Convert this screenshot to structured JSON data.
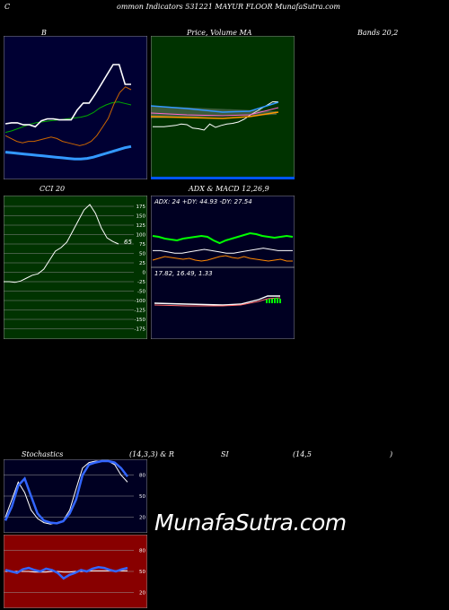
{
  "header": {
    "left_letter": "C",
    "title": "ommon  Indicators 531221 MAYUR FLOOR  MunafaSutra.com"
  },
  "labels": {
    "b_title": "B",
    "price_title": "Price,  Volume  MA",
    "bands_title": "Bands 20,2",
    "cci_title": "CCI 20",
    "adx_title": "ADX  & MACD 12,26,9",
    "adx_info": "ADX: 24  +DY: 44.93 -DY: 27.54",
    "macd_info": "17.82,  16.49,  1.33",
    "stoch_title_a": "Stochastics",
    "stoch_title_b": "(14,3,3) & R",
    "stoch_title_c": "SI",
    "stoch_title_d": "(14,5",
    "stoch_title_e": ")",
    "watermark": "MunafaSutra.com"
  },
  "colors": {
    "bands_bg": "#000033",
    "price_bg": "#003300",
    "cci_bg": "#003300",
    "adx_bg": "#000022",
    "stoch_bg": "#000022",
    "rsi_bg": "#880000",
    "adx_line": "#00ff00",
    "adx_down": "#ff8800",
    "macd_line": "#ffffff",
    "macd_hist": "#00ff00",
    "bollinger_mid": "#3399ff",
    "bollinger_up": "#00aa00",
    "bollinger_low": "#cc6600"
  },
  "chart_data": [
    {
      "type": "line",
      "name_ref": "bollinger",
      "series": [
        {
          "values": [
            118,
            116,
            114,
            113,
            114,
            114,
            115,
            116,
            117,
            116,
            114,
            113,
            112,
            111,
            112,
            114,
            118,
            124,
            130,
            140,
            148,
            152,
            150
          ]
        },
        {
          "values": [
            132,
            131,
            130,
            129,
            128,
            127,
            126,
            125,
            124,
            123,
            122,
            121,
            121,
            122,
            124,
            127,
            130,
            133,
            136,
            139,
            141
          ]
        },
        {
          "values": [
            144,
            146,
            149,
            152,
            155,
            157,
            158,
            159,
            160,
            161,
            162,
            163,
            164,
            166,
            170,
            176,
            180,
            183,
            184,
            182,
            180
          ]
        },
        {
          "values": [
            120,
            121,
            121,
            119,
            119,
            117,
            123,
            125,
            125,
            124,
            124,
            124,
            134,
            141,
            141,
            150,
            160,
            170,
            180,
            180,
            160,
            160
          ]
        }
      ]
    },
    {
      "type": "line",
      "name_ref": "price_ma",
      "series": [
        {
          "values": [
            135,
            135,
            135,
            134,
            133,
            131,
            132,
            137,
            138,
            140,
            131,
            136,
            133,
            131,
            130,
            128,
            124,
            118,
            113,
            108,
            103,
            98,
            98
          ]
        }
      ]
    },
    {
      "type": "line",
      "name_ref": "cci",
      "ticks": [
        "175",
        "150",
        "125",
        "100",
        "75",
        "50",
        "25",
        "0",
        "-25",
        "-50",
        "-100",
        "-125",
        "-150",
        "-175"
      ],
      "value_label": "65",
      "series": [
        {
          "values": [
            -40,
            -40,
            -42,
            -38,
            -30,
            -22,
            -18,
            -5,
            20,
            45,
            55,
            70,
            100,
            130,
            160,
            175,
            150,
            110,
            82,
            72,
            65
          ]
        }
      ]
    },
    {
      "type": "line",
      "name_ref": "adx_macd",
      "series": [
        {
          "values": [
            45,
            44,
            42,
            41,
            40,
            42,
            43,
            44,
            45,
            44,
            40,
            37,
            40,
            42,
            44,
            46,
            48,
            47,
            45,
            44,
            43,
            44,
            45,
            44
          ]
        },
        {
          "values": [
            28,
            30,
            32,
            31,
            30,
            29,
            30,
            28,
            27,
            28,
            30,
            32,
            33,
            31,
            30,
            32,
            30,
            29,
            28,
            27,
            28,
            29,
            27,
            27
          ]
        },
        {
          "values": [
            24,
            24,
            23,
            22,
            22,
            23,
            24,
            25,
            24,
            23,
            22,
            22,
            23,
            24,
            25,
            26,
            25,
            24,
            24,
            24
          ]
        }
      ]
    },
    {
      "type": "line",
      "name_ref": "stochastics",
      "ticks": [
        "80",
        "50",
        "20"
      ],
      "series": [
        {
          "values": [
            20,
            45,
            70,
            55,
            30,
            18,
            12,
            10,
            12,
            15,
            30,
            60,
            90,
            98,
            100,
            100,
            100,
            95,
            80,
            70
          ]
        },
        {
          "values": [
            15,
            35,
            65,
            75,
            50,
            25,
            15,
            12,
            11,
            14,
            25,
            45,
            80,
            95,
            98,
            100,
            100,
            98,
            90,
            78
          ]
        }
      ]
    },
    {
      "type": "line",
      "name_ref": "rsi",
      "ticks": [
        "80",
        "50",
        "20"
      ],
      "series": [
        {
          "values": [
            52,
            50,
            48,
            53,
            55,
            52,
            50,
            54,
            52,
            48,
            40,
            45,
            48,
            52,
            50,
            54,
            56,
            55,
            52,
            50,
            53,
            55
          ]
        },
        {
          "values": [
            50,
            50,
            50,
            50,
            50,
            49,
            49,
            49,
            50,
            50,
            49,
            49,
            50,
            50,
            50,
            51,
            51,
            51,
            51,
            51,
            51,
            51
          ]
        }
      ]
    }
  ]
}
